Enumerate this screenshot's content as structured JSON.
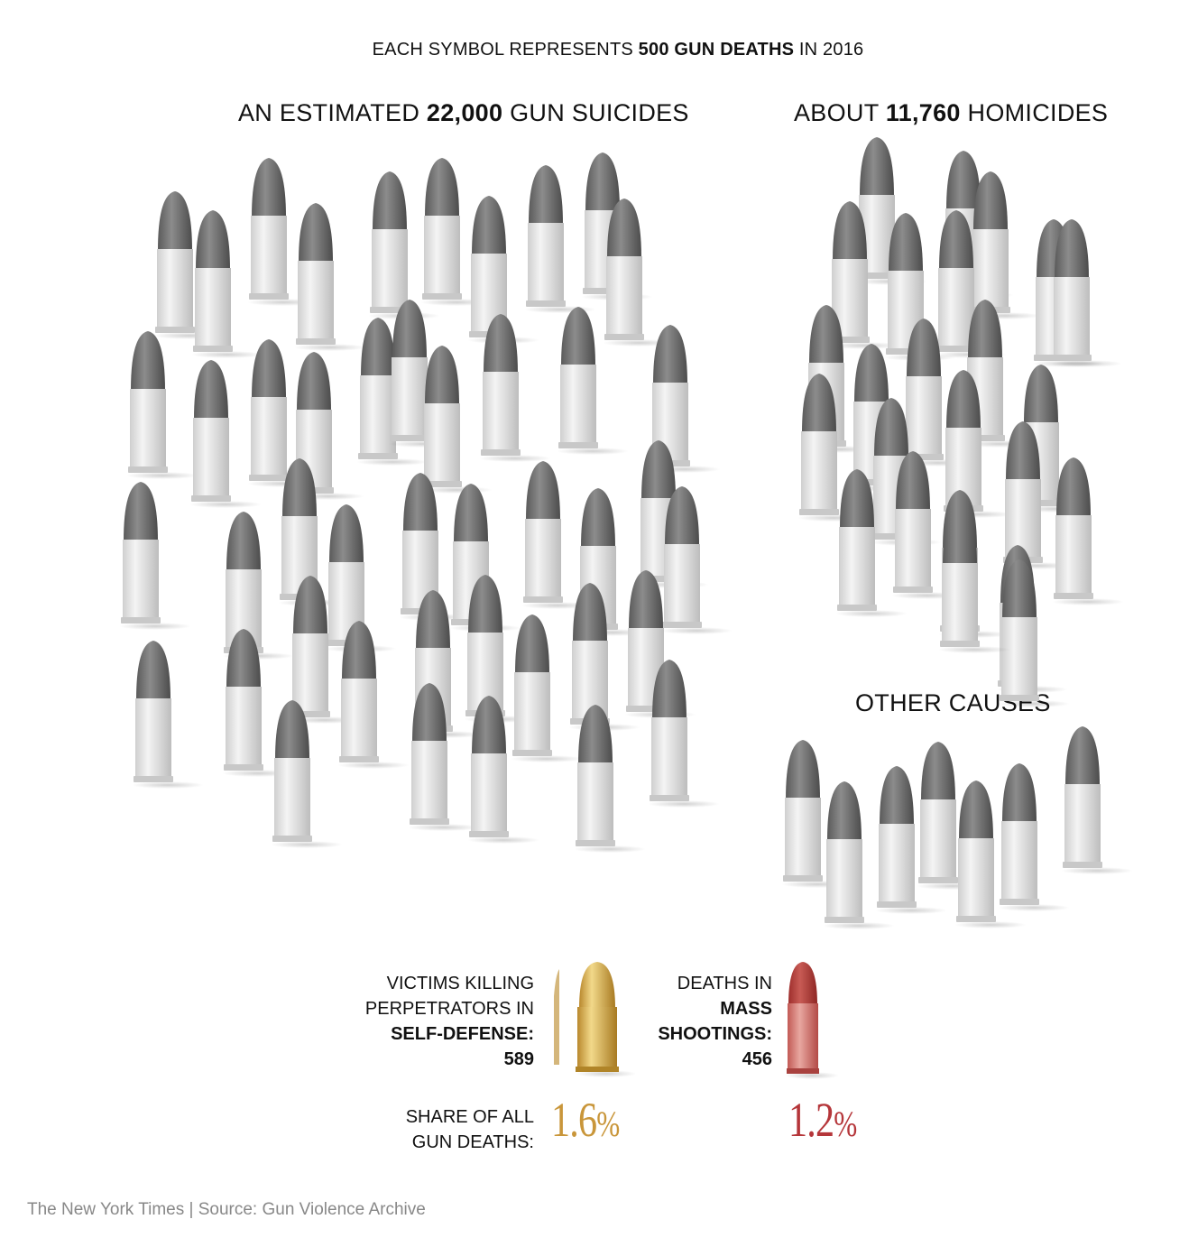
{
  "header": {
    "prefix": "EACH SYMBOL REPRESENTS ",
    "strong": "500 GUN DEATHS",
    "suffix": " IN 2016"
  },
  "chart_data": {
    "type": "pictogram",
    "unit_value": 500,
    "year": "2016",
    "groups": [
      {
        "title_prefix": "AN ESTIMATED ",
        "title_strong": "22,000",
        "title_suffix": " GUN SUICIDES",
        "value": 22000,
        "symbols": 44
      },
      {
        "title_prefix": "ABOUT ",
        "title_strong": "11,760",
        "title_suffix": " HOMICIDES",
        "value": 11760,
        "symbols": 24
      },
      {
        "title_prefix": "OTHER CAUSES",
        "title_strong": "",
        "title_suffix": "",
        "symbols": 7
      }
    ],
    "highlights": [
      {
        "line1": "VICTIMS KILLING",
        "line2": "PERPETRATORS IN",
        "strong": "SELF-DEFENSE:",
        "value": 589,
        "value_text": "589",
        "share": 1.6,
        "share_text": "1.6",
        "color": "#c9963a"
      },
      {
        "line1": "DEATHS IN",
        "line2": "",
        "strong1": "MASS",
        "strong2": "SHOOTINGS:",
        "value": 456,
        "value_text": "456",
        "share": 1.2,
        "share_text": "1.2",
        "color": "#b5363a"
      }
    ],
    "share_label_line1": "SHARE OF ALL",
    "share_label_line2": "GUN DEATHS:",
    "share_unit": "%"
  },
  "colors": {
    "bullet_tip": "#6f6f6f",
    "bullet_case": "#e2e2e2",
    "gold": "#c9963a",
    "red": "#b5363a"
  },
  "source": "The New York Times | Source: Gun Violence Archive"
}
